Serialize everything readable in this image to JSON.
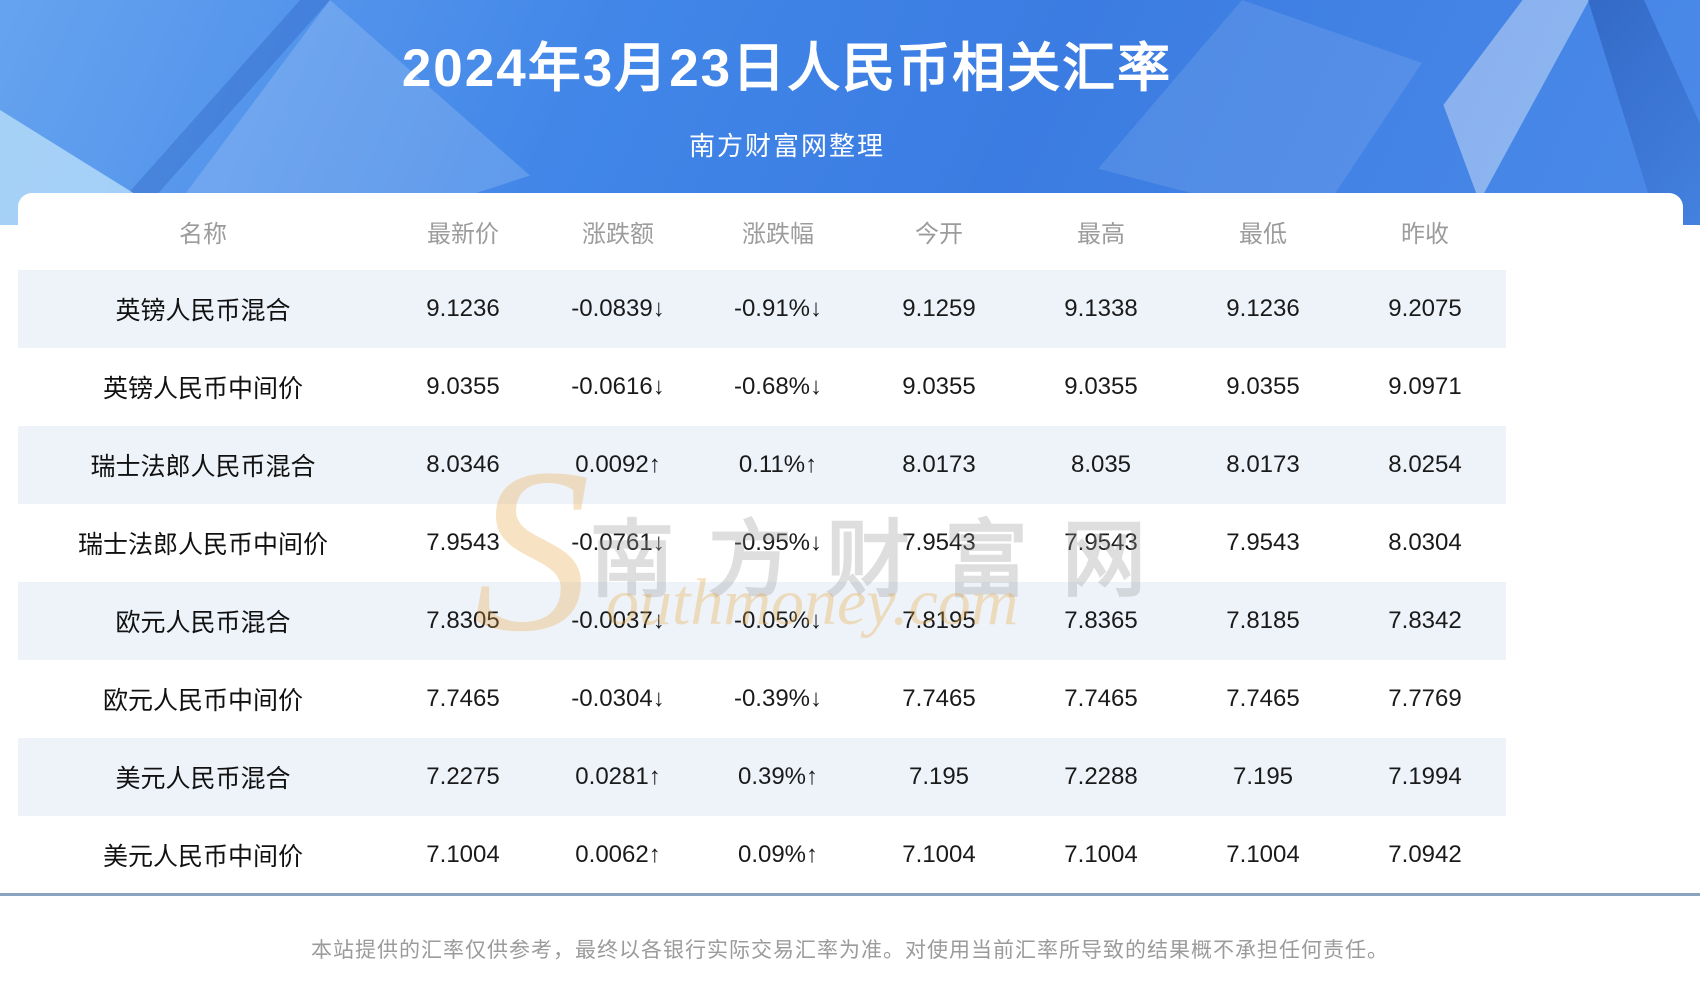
{
  "header": {
    "title": "2024年3月23日人民币相关汇率",
    "subtitle": "南方财富网整理"
  },
  "watermark": {
    "cn": "南方财富网",
    "en": "Southmoney.com",
    "swoosh": "S"
  },
  "table": {
    "columns": [
      "名称",
      "最新价",
      "涨跌额",
      "涨跌幅",
      "今开",
      "最高",
      "最低",
      "昨收"
    ],
    "rows": [
      {
        "name": "英镑人民币混合",
        "last": "9.1236",
        "change": "-0.0839↓",
        "change_pct": "-0.91%↓",
        "open": "9.1259",
        "high": "9.1338",
        "low": "9.1236",
        "prev_close": "9.2075",
        "direction": "down"
      },
      {
        "name": "英镑人民币中间价",
        "last": "9.0355",
        "change": "-0.0616↓",
        "change_pct": "-0.68%↓",
        "open": "9.0355",
        "high": "9.0355",
        "low": "9.0355",
        "prev_close": "9.0971",
        "direction": "down"
      },
      {
        "name": "瑞士法郎人民币混合",
        "last": "8.0346",
        "change": "0.0092↑",
        "change_pct": "0.11%↑",
        "open": "8.0173",
        "high": "8.035",
        "low": "8.0173",
        "prev_close": "8.0254",
        "direction": "up"
      },
      {
        "name": "瑞士法郎人民币中间价",
        "last": "7.9543",
        "change": "-0.0761↓",
        "change_pct": "-0.95%↓",
        "open": "7.9543",
        "high": "7.9543",
        "low": "7.9543",
        "prev_close": "8.0304",
        "direction": "down"
      },
      {
        "name": "欧元人民币混合",
        "last": "7.8305",
        "change": "-0.0037↓",
        "change_pct": "-0.05%↓",
        "open": "7.8195",
        "high": "7.8365",
        "low": "7.8185",
        "prev_close": "7.8342",
        "direction": "down"
      },
      {
        "name": "欧元人民币中间价",
        "last": "7.7465",
        "change": "-0.0304↓",
        "change_pct": "-0.39%↓",
        "open": "7.7465",
        "high": "7.7465",
        "low": "7.7465",
        "prev_close": "7.7769",
        "direction": "down"
      },
      {
        "name": "美元人民币混合",
        "last": "7.2275",
        "change": "0.0281↑",
        "change_pct": "0.39%↑",
        "open": "7.195",
        "high": "7.2288",
        "low": "7.195",
        "prev_close": "7.1994",
        "direction": "up"
      },
      {
        "name": "美元人民币中间价",
        "last": "7.1004",
        "change": "0.0062↑",
        "change_pct": "0.09%↑",
        "open": "7.1004",
        "high": "7.1004",
        "low": "7.1004",
        "prev_close": "7.0942",
        "direction": "up"
      }
    ]
  },
  "footer": {
    "disclaimer": "本站提供的汇率仅供参考，最终以各银行实际交易汇率为准。对使用当前汇率所导致的结果概不承担任何责任。"
  },
  "theme": {
    "accent_blue": "#3b7ce2",
    "row_stripe": "#eef3fa",
    "up_red": "#fe0101",
    "down_green": "#128712",
    "muted_gray": "#9c9c9c",
    "divider": "#8aa3bf",
    "watermark_tan": "#e8a63d"
  }
}
